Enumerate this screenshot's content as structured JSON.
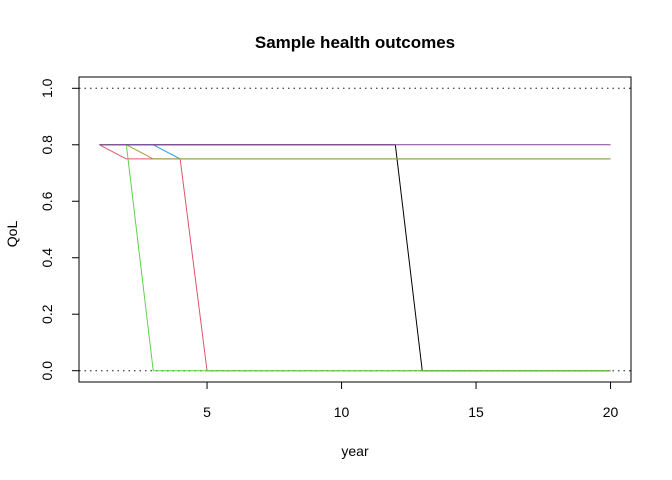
{
  "chart_data": {
    "type": "line",
    "title": "Sample health outcomes",
    "xlabel": "year",
    "ylabel": "QoL",
    "xlim": [
      0.24,
      20.76
    ],
    "ylim": [
      -0.04,
      1.04
    ],
    "x_ticks": [
      5,
      10,
      15,
      20
    ],
    "x_tick_labels": [
      "5",
      "10",
      "15",
      "20"
    ],
    "y_ticks": [
      0.0,
      0.2,
      0.4,
      0.6,
      0.8,
      1.0
    ],
    "y_tick_labels": [
      "0.0",
      "0.2",
      "0.4",
      "0.6",
      "0.8",
      "1.0"
    ],
    "grid": false,
    "reference_lines": [
      {
        "y": 1.0,
        "style": "dotted",
        "color": "#555555"
      },
      {
        "y": 0.0,
        "style": "dotted",
        "color": "#555555"
      }
    ],
    "series": [
      {
        "color": "#000000",
        "x": [
          1,
          2,
          3,
          4,
          5,
          6,
          7,
          8,
          9,
          10,
          11,
          12,
          13,
          14,
          15,
          16,
          17,
          18,
          19,
          20
        ],
        "values": [
          0.8,
          0.8,
          0.8,
          0.8,
          0.8,
          0.8,
          0.8,
          0.8,
          0.8,
          0.8,
          0.8,
          0.8,
          0.0,
          0.0,
          0.0,
          0.0,
          0.0,
          0.0,
          0.0,
          0.0
        ]
      },
      {
        "color": "#DF536B",
        "x": [
          1,
          2,
          3,
          4,
          5,
          6,
          7,
          8,
          9,
          10,
          11,
          12,
          13,
          14,
          15,
          16,
          17,
          18,
          19,
          20
        ],
        "values": [
          0.8,
          0.75,
          0.75,
          0.75,
          0.0,
          0.0,
          0.0,
          0.0,
          0.0,
          0.0,
          0.0,
          0.0,
          0.0,
          0.0,
          0.0,
          0.0,
          0.0,
          0.0,
          0.0,
          0.0
        ]
      },
      {
        "color": "#61D04F",
        "x": [
          1,
          2,
          3,
          4,
          5,
          6,
          7,
          8,
          9,
          10,
          11,
          12,
          13,
          14,
          15,
          16,
          17,
          18,
          19,
          20
        ],
        "values": [
          0.8,
          0.8,
          0.0,
          0.0,
          0.0,
          0.0,
          0.0,
          0.0,
          0.0,
          0.0,
          0.0,
          0.0,
          0.0,
          0.0,
          0.0,
          0.0,
          0.0,
          0.0,
          0.0,
          0.0
        ]
      },
      {
        "color": "#2297E6",
        "x": [
          1,
          2,
          3,
          4,
          5,
          6,
          7,
          8,
          9,
          10,
          11,
          12,
          13,
          14,
          15,
          16,
          17,
          18,
          19,
          20
        ],
        "values": [
          0.8,
          0.8,
          0.8,
          0.75,
          0.75,
          0.75,
          0.75,
          0.75,
          0.75,
          0.75,
          0.75,
          0.75,
          0.75,
          0.75,
          0.75,
          0.75,
          0.75,
          0.75,
          0.75,
          0.75
        ]
      },
      {
        "color": "#9E9E3A",
        "x": [
          1,
          2,
          3,
          4,
          5,
          6,
          7,
          8,
          9,
          10,
          11,
          12,
          13,
          14,
          15,
          16,
          17,
          18,
          19,
          20
        ],
        "values": [
          0.8,
          0.8,
          0.75,
          0.75,
          0.75,
          0.75,
          0.75,
          0.75,
          0.75,
          0.75,
          0.75,
          0.75,
          0.75,
          0.75,
          0.75,
          0.75,
          0.75,
          0.75,
          0.75,
          0.75
        ]
      },
      {
        "color": "#8A3FA0",
        "x": [
          1,
          2,
          3,
          4,
          5,
          6,
          7,
          8,
          9,
          10,
          11,
          12,
          13,
          14,
          15,
          16,
          17,
          18,
          19,
          20
        ],
        "values": [
          0.8,
          0.8,
          0.8,
          0.8,
          0.8,
          0.8,
          0.8,
          0.8,
          0.8,
          0.8,
          0.8,
          0.8,
          0.8,
          0.8,
          0.8,
          0.8,
          0.8,
          0.8,
          0.8,
          0.8
        ]
      }
    ]
  }
}
